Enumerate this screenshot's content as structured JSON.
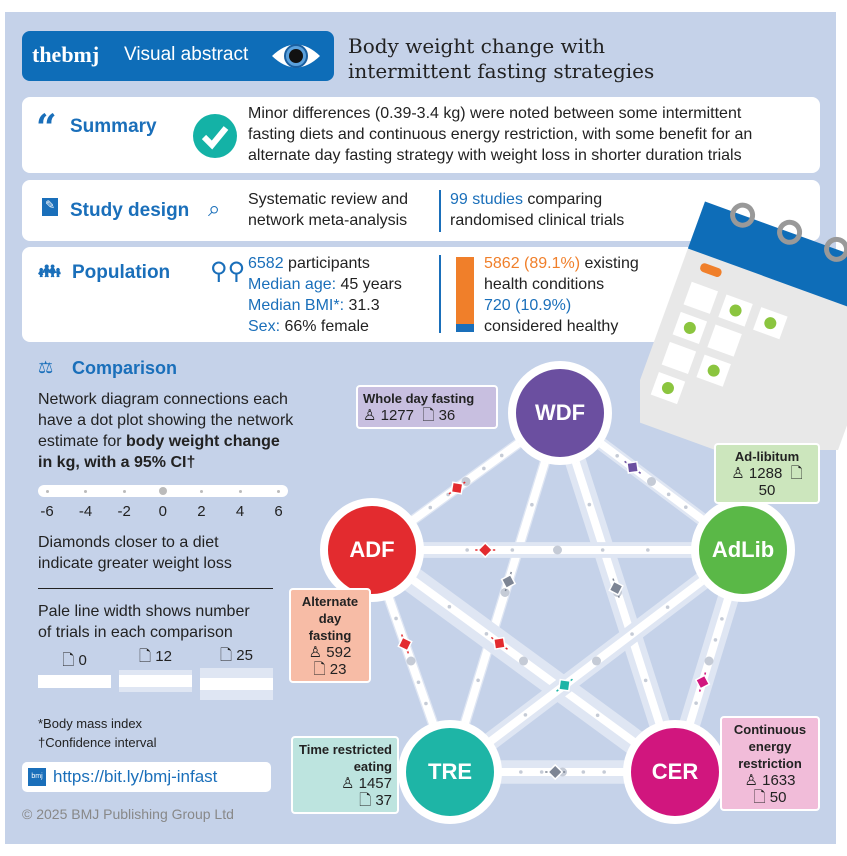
{
  "header": {
    "brand": "thebmj",
    "label": "Visual abstract",
    "title_line1": "Body weight change with",
    "title_line2": "intermittent fasting strategies"
  },
  "summary": {
    "heading": "Summary",
    "line1": "Minor differences (0.39-3.4 kg) were noted between some intermittent",
    "line2": "fasting diets and continuous energy restriction, with some benefit for an",
    "line3": "alternate day fasting strategy with weight loss in shorter duration trials"
  },
  "design": {
    "heading": "Study design",
    "line1": "Systematic review and",
    "line2": "network meta-analysis",
    "studies": "99 studies",
    "studies_rest": " comparing",
    "line4": "randomised clinical trials"
  },
  "population": {
    "heading": "Population",
    "participants": "6582",
    "participants_rest": " participants",
    "age_label": "Median age:",
    "age": " 45 years",
    "bmi_label": "Median BMI*:",
    "bmi": " 31.3",
    "sex_label": "Sex:",
    "sex": " 66% female",
    "existing": "5862 (89.1%)",
    "existing_rest": " existing",
    "existing_line2": "health conditions",
    "healthy": "720 (10.9%)",
    "healthy_line2": "considered healthy",
    "existing_fraction": 0.891
  },
  "comparison": {
    "heading": "Comparison",
    "line1": "Network diagram connections each",
    "line2": "have a dot plot showing the network",
    "line3": "estimate for ",
    "line3_bold": "body weight change",
    "line4_bold": "in kg, with a 95% CI†",
    "scale": [
      "-6",
      "-4",
      "-2",
      "0",
      "2",
      "4",
      "6"
    ],
    "diamond_line1": "Diamonds closer to a diet",
    "diamond_line2": "indicate greater weight loss",
    "width_line1": "Pale line width shows number",
    "width_line2": "of trials in each comparison",
    "width_examples": [
      "0",
      "12",
      "25"
    ],
    "footnote1": "*Body mass index",
    "footnote2": "†Confidence interval"
  },
  "link": "https://bit.ly/bmj-infast",
  "copyright": "© 2025 BMJ Publishing Group Ltd",
  "nodes": {
    "WDF": {
      "abbr": "WDF",
      "name": "Whole day fasting",
      "participants": "1277",
      "trials": "36",
      "color": "#6b4fa0"
    },
    "AdLib": {
      "abbr": "AdLib",
      "name": "Ad-libitum",
      "participants": "1288",
      "trials": "50",
      "color": "#5ab847"
    },
    "ADF": {
      "abbr": "ADF",
      "name": "Alternate day fasting",
      "participants": "592",
      "trials": "23",
      "color": "#e32b2f"
    },
    "TRE": {
      "abbr": "TRE",
      "name": "Time restricted eating",
      "participants": "1457",
      "trials": "37",
      "color": "#1eb5a6"
    },
    "CER": {
      "abbr": "CER",
      "name": "Continuous energy restriction",
      "participants": "1633",
      "trials": "50",
      "color": "#d1167e"
    }
  },
  "edges": [
    {
      "from": "ADF",
      "to": "WDF",
      "estimate_kg": -1.0,
      "trials": 2,
      "color": "#e32b2f"
    },
    {
      "from": "WDF",
      "to": "AdLib",
      "estimate_kg": -2.2,
      "trials": 4,
      "color": "#6b4fa0"
    },
    {
      "from": "WDF",
      "to": "TRE",
      "estimate_kg": -0.5,
      "trials": 2,
      "color": "#7d8594"
    },
    {
      "from": "WDF",
      "to": "CER",
      "estimate_kg": -0.2,
      "trials": 10,
      "color": "#7d8594"
    },
    {
      "from": "ADF",
      "to": "AdLib",
      "estimate_kg": -3.2,
      "trials": 6,
      "color": "#e32b2f"
    },
    {
      "from": "ADF",
      "to": "TRE",
      "estimate_kg": -1.6,
      "trials": 2,
      "color": "#e32b2f"
    },
    {
      "from": "ADF",
      "to": "CER",
      "estimate_kg": -1.3,
      "trials": 14,
      "color": "#e32b2f"
    },
    {
      "from": "TRE",
      "to": "AdLib",
      "estimate_kg": -1.8,
      "trials": 8,
      "color": "#1eb5a6"
    },
    {
      "from": "CER",
      "to": "AdLib",
      "estimate_kg": -2.0,
      "trials": 10,
      "color": "#d1167e"
    },
    {
      "from": "TRE",
      "to": "CER",
      "estimate_kg": -0.7,
      "trials": 12,
      "color": "#7d8594"
    }
  ]
}
